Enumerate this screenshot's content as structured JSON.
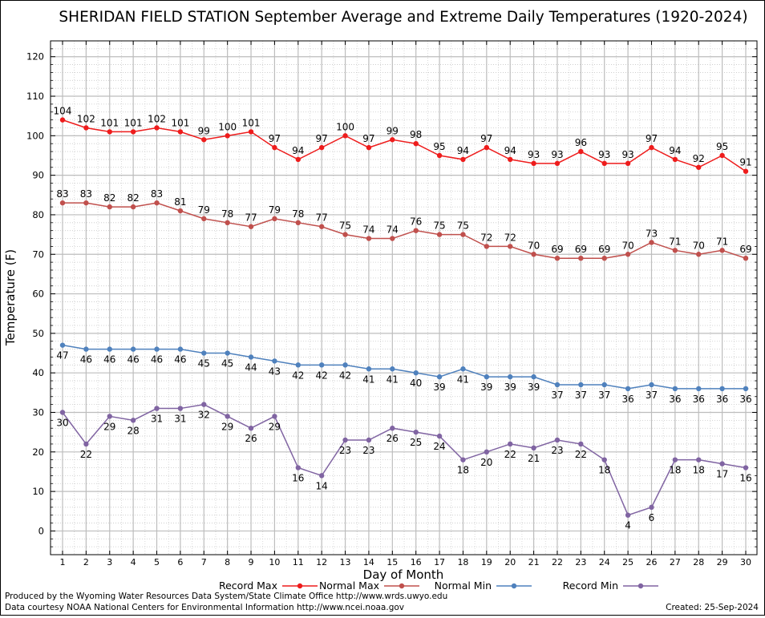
{
  "chart_data": {
    "type": "line",
    "title": "SHERIDAN FIELD STATION September Average and Extreme Daily Temperatures (1920-2024)",
    "xlabel": "Day of Month",
    "ylabel": "Temperature (F)",
    "x": [
      1,
      2,
      3,
      4,
      5,
      6,
      7,
      8,
      9,
      10,
      11,
      12,
      13,
      14,
      15,
      16,
      17,
      18,
      19,
      20,
      21,
      22,
      23,
      24,
      25,
      26,
      27,
      28,
      29,
      30
    ],
    "x_tick_labels": [
      "1",
      "2",
      "3",
      "4",
      "5",
      "6",
      "7",
      "8",
      "9",
      "10",
      "11",
      "12",
      "13",
      "14",
      "15",
      "16",
      "17",
      "18",
      "19",
      "20",
      "21",
      "22",
      "23",
      "24",
      "25",
      "26",
      "27",
      "28",
      "29",
      "30"
    ],
    "ylim": [
      -6,
      124
    ],
    "y_tick_labels": [
      "0",
      "10",
      "20",
      "30",
      "40",
      "50",
      "60",
      "70",
      "80",
      "90",
      "100",
      "110",
      "120"
    ],
    "grid": true,
    "legend_position": "bottom",
    "series": [
      {
        "name": "Record Max",
        "color": "#ee1c1c",
        "label_position": "above",
        "values": [
          104,
          102,
          101,
          101,
          102,
          101,
          99,
          100,
          101,
          97,
          94,
          97,
          100,
          97,
          99,
          98,
          95,
          94,
          97,
          94,
          93,
          93,
          96,
          93,
          93,
          97,
          94,
          92,
          95,
          91
        ]
      },
      {
        "name": "Normal Max",
        "color": "#c0504d",
        "label_position": "above",
        "values": [
          83,
          83,
          82,
          82,
          83,
          81,
          79,
          78,
          77,
          79,
          78,
          77,
          75,
          74,
          74,
          76,
          75,
          75,
          72,
          72,
          70,
          69,
          69,
          69,
          70,
          73,
          71,
          70,
          71,
          69
        ]
      },
      {
        "name": "Normal Min",
        "color": "#4f81bd",
        "label_position": "below",
        "values": [
          47,
          46,
          46,
          46,
          46,
          46,
          45,
          45,
          44,
          43,
          42,
          42,
          42,
          41,
          41,
          40,
          39,
          41,
          39,
          39,
          39,
          37,
          37,
          37,
          36,
          37,
          36,
          36,
          36,
          36
        ]
      },
      {
        "name": "Record Min",
        "color": "#8064a2",
        "label_position": "below",
        "values": [
          30,
          22,
          29,
          28,
          31,
          31,
          32,
          29,
          26,
          29,
          16,
          14,
          23,
          23,
          26,
          25,
          24,
          18,
          20,
          22,
          21,
          23,
          22,
          18,
          4,
          6,
          18,
          18,
          17,
          16
        ]
      }
    ]
  },
  "footer": {
    "produced_by": "Produced by the Wyoming Water Resources Data System/State Climate Office http://www.wrds.uwyo.edu",
    "data_courtesy": "Data courtesy NOAA National Centers for Environmental Information http://www.ncei.noaa.gov",
    "created": "Created:  25-Sep-2024"
  }
}
